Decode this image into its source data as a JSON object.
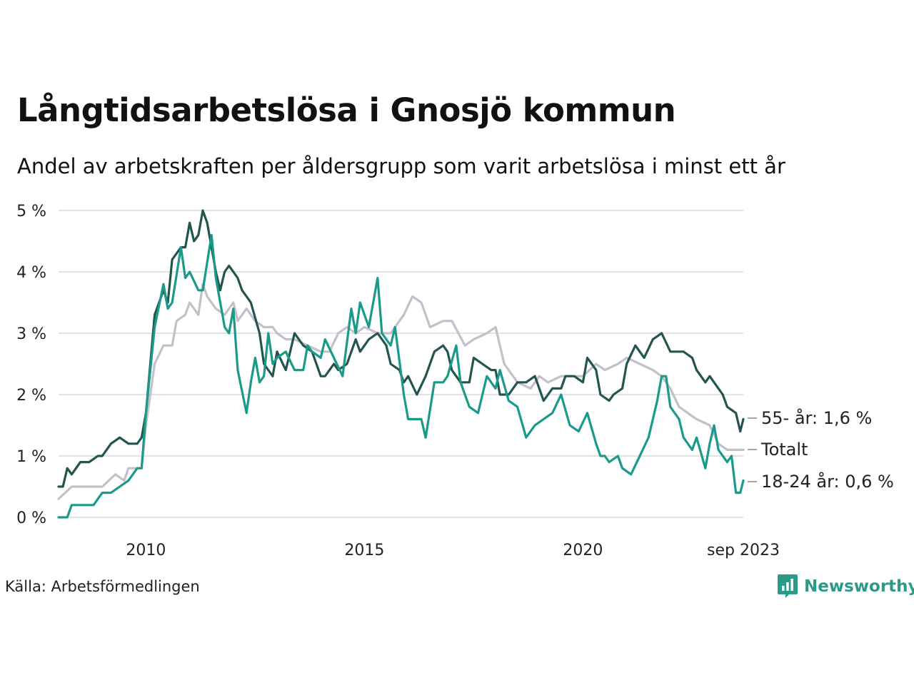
{
  "title": "Långtidsarbetslösa i Gnosjö kommun",
  "subtitle": "Andel av arbetskraften per åldersgrupp som varit arbetslösa i minst ett år",
  "source": "Källa: Arbetsförmedlingen",
  "brand": {
    "name": "Newsworthy"
  },
  "colors": {
    "oldest": "#23554e",
    "total": "#c2c0cb",
    "youngest": "#1a9a8a",
    "grid": "#e1e1e6"
  },
  "chart_data": {
    "type": "line",
    "title": "Långtidsarbetslösa i Gnosjö kommun",
    "ylabel": "Andel av arbetskraften",
    "ylim": [
      0,
      5
    ],
    "xlim": [
      2008.0,
      2023.67
    ],
    "y_ticks": [
      0,
      1,
      2,
      3,
      4,
      5
    ],
    "y_tick_labels": [
      "0 %",
      "1 %",
      "2 %",
      "3 %",
      "4 %",
      "5 %"
    ],
    "x_ticks": [
      2010,
      2015,
      2020,
      2023.67
    ],
    "x_tick_labels": [
      "2010",
      "2015",
      "2020",
      "sep 2023"
    ],
    "series": [
      {
        "name": "Totalt",
        "label": "Totalt",
        "color": "#c2c0cb",
        "points": [
          [
            2008.0,
            0.3
          ],
          [
            2008.3,
            0.5
          ],
          [
            2008.8,
            0.5
          ],
          [
            2009.0,
            0.5
          ],
          [
            2009.3,
            0.7
          ],
          [
            2009.5,
            0.6
          ],
          [
            2009.6,
            0.8
          ],
          [
            2009.9,
            0.8
          ],
          [
            2010.0,
            1.5
          ],
          [
            2010.2,
            2.5
          ],
          [
            2010.4,
            2.8
          ],
          [
            2010.6,
            2.8
          ],
          [
            2010.7,
            3.2
          ],
          [
            2010.9,
            3.3
          ],
          [
            2011.0,
            3.5
          ],
          [
            2011.2,
            3.3
          ],
          [
            2011.3,
            3.8
          ],
          [
            2011.4,
            3.6
          ],
          [
            2011.6,
            3.4
          ],
          [
            2011.8,
            3.3
          ],
          [
            2012.0,
            3.5
          ],
          [
            2012.1,
            3.2
          ],
          [
            2012.3,
            3.4
          ],
          [
            2012.5,
            3.2
          ],
          [
            2012.7,
            3.1
          ],
          [
            2012.9,
            3.1
          ],
          [
            2013.0,
            3.0
          ],
          [
            2013.2,
            2.9
          ],
          [
            2013.4,
            2.9
          ],
          [
            2013.7,
            2.8
          ],
          [
            2014.0,
            2.7
          ],
          [
            2014.2,
            2.7
          ],
          [
            2014.4,
            3.0
          ],
          [
            2014.6,
            3.1
          ],
          [
            2014.8,
            3.0
          ],
          [
            2015.0,
            3.1
          ],
          [
            2015.3,
            3.0
          ],
          [
            2015.6,
            3.0
          ],
          [
            2015.9,
            3.3
          ],
          [
            2016.1,
            3.6
          ],
          [
            2016.3,
            3.5
          ],
          [
            2016.5,
            3.1
          ],
          [
            2016.8,
            3.2
          ],
          [
            2017.0,
            3.2
          ],
          [
            2017.3,
            2.8
          ],
          [
            2017.5,
            2.9
          ],
          [
            2017.8,
            3.0
          ],
          [
            2018.0,
            3.1
          ],
          [
            2018.2,
            2.5
          ],
          [
            2018.5,
            2.2
          ],
          [
            2018.8,
            2.1
          ],
          [
            2019.0,
            2.3
          ],
          [
            2019.2,
            2.2
          ],
          [
            2019.5,
            2.3
          ],
          [
            2019.8,
            2.3
          ],
          [
            2020.0,
            2.3
          ],
          [
            2020.3,
            2.5
          ],
          [
            2020.5,
            2.4
          ],
          [
            2020.8,
            2.5
          ],
          [
            2021.0,
            2.6
          ],
          [
            2021.3,
            2.5
          ],
          [
            2021.6,
            2.4
          ],
          [
            2021.8,
            2.3
          ],
          [
            2022.0,
            2.1
          ],
          [
            2022.2,
            1.8
          ],
          [
            2022.4,
            1.7
          ],
          [
            2022.6,
            1.6
          ],
          [
            2022.9,
            1.5
          ],
          [
            2023.1,
            1.2
          ],
          [
            2023.3,
            1.1
          ],
          [
            2023.67,
            1.1
          ]
        ]
      },
      {
        "name": "55- år",
        "label": "55- år: 1,6 %",
        "color": "#23554e",
        "points": [
          [
            2008.0,
            0.5
          ],
          [
            2008.1,
            0.5
          ],
          [
            2008.2,
            0.8
          ],
          [
            2008.3,
            0.7
          ],
          [
            2008.5,
            0.9
          ],
          [
            2008.7,
            0.9
          ],
          [
            2008.9,
            1.0
          ],
          [
            2009.0,
            1.0
          ],
          [
            2009.2,
            1.2
          ],
          [
            2009.4,
            1.3
          ],
          [
            2009.6,
            1.2
          ],
          [
            2009.8,
            1.2
          ],
          [
            2009.9,
            1.3
          ],
          [
            2010.0,
            1.7
          ],
          [
            2010.2,
            3.3
          ],
          [
            2010.4,
            3.7
          ],
          [
            2010.5,
            3.5
          ],
          [
            2010.6,
            4.2
          ],
          [
            2010.8,
            4.4
          ],
          [
            2010.9,
            4.4
          ],
          [
            2011.0,
            4.8
          ],
          [
            2011.1,
            4.5
          ],
          [
            2011.2,
            4.6
          ],
          [
            2011.3,
            5.0
          ],
          [
            2011.4,
            4.8
          ],
          [
            2011.6,
            4.0
          ],
          [
            2011.7,
            3.7
          ],
          [
            2011.8,
            4.0
          ],
          [
            2011.9,
            4.1
          ],
          [
            2012.1,
            3.9
          ],
          [
            2012.2,
            3.7
          ],
          [
            2012.4,
            3.5
          ],
          [
            2012.6,
            3.0
          ],
          [
            2012.7,
            2.5
          ],
          [
            2012.9,
            2.3
          ],
          [
            2013.0,
            2.7
          ],
          [
            2013.2,
            2.4
          ],
          [
            2013.3,
            2.7
          ],
          [
            2013.4,
            3.0
          ],
          [
            2013.6,
            2.8
          ],
          [
            2013.8,
            2.7
          ],
          [
            2014.0,
            2.3
          ],
          [
            2014.1,
            2.3
          ],
          [
            2014.3,
            2.5
          ],
          [
            2014.4,
            2.4
          ],
          [
            2014.6,
            2.5
          ],
          [
            2014.8,
            2.9
          ],
          [
            2014.9,
            2.7
          ],
          [
            2015.0,
            2.8
          ],
          [
            2015.1,
            2.9
          ],
          [
            2015.3,
            3.0
          ],
          [
            2015.5,
            2.8
          ],
          [
            2015.6,
            2.5
          ],
          [
            2015.8,
            2.4
          ],
          [
            2015.9,
            2.2
          ],
          [
            2016.0,
            2.3
          ],
          [
            2016.2,
            2.0
          ],
          [
            2016.4,
            2.3
          ],
          [
            2016.6,
            2.7
          ],
          [
            2016.8,
            2.8
          ],
          [
            2016.9,
            2.7
          ],
          [
            2017.0,
            2.4
          ],
          [
            2017.2,
            2.2
          ],
          [
            2017.4,
            2.2
          ],
          [
            2017.5,
            2.6
          ],
          [
            2017.7,
            2.5
          ],
          [
            2017.9,
            2.4
          ],
          [
            2018.0,
            2.4
          ],
          [
            2018.1,
            2.0
          ],
          [
            2018.3,
            2.0
          ],
          [
            2018.5,
            2.2
          ],
          [
            2018.7,
            2.2
          ],
          [
            2018.9,
            2.3
          ],
          [
            2019.0,
            2.1
          ],
          [
            2019.1,
            1.9
          ],
          [
            2019.3,
            2.1
          ],
          [
            2019.5,
            2.1
          ],
          [
            2019.6,
            2.3
          ],
          [
            2019.8,
            2.3
          ],
          [
            2020.0,
            2.2
          ],
          [
            2020.1,
            2.6
          ],
          [
            2020.3,
            2.4
          ],
          [
            2020.4,
            2.0
          ],
          [
            2020.6,
            1.9
          ],
          [
            2020.7,
            2.0
          ],
          [
            2020.9,
            2.1
          ],
          [
            2021.0,
            2.5
          ],
          [
            2021.2,
            2.8
          ],
          [
            2021.4,
            2.6
          ],
          [
            2021.6,
            2.9
          ],
          [
            2021.8,
            3.0
          ],
          [
            2022.0,
            2.7
          ],
          [
            2022.1,
            2.7
          ],
          [
            2022.3,
            2.7
          ],
          [
            2022.5,
            2.6
          ],
          [
            2022.6,
            2.4
          ],
          [
            2022.8,
            2.2
          ],
          [
            2022.9,
            2.3
          ],
          [
            2023.1,
            2.1
          ],
          [
            2023.2,
            2.0
          ],
          [
            2023.3,
            1.8
          ],
          [
            2023.5,
            1.7
          ],
          [
            2023.6,
            1.4
          ],
          [
            2023.67,
            1.6
          ]
        ]
      },
      {
        "name": "18-24 år",
        "label": "18-24 år: 0,6 %",
        "color": "#1a9a8a",
        "points": [
          [
            2008.0,
            0.0
          ],
          [
            2008.2,
            0.0
          ],
          [
            2008.3,
            0.2
          ],
          [
            2008.6,
            0.2
          ],
          [
            2008.8,
            0.2
          ],
          [
            2009.0,
            0.4
          ],
          [
            2009.2,
            0.4
          ],
          [
            2009.4,
            0.5
          ],
          [
            2009.6,
            0.6
          ],
          [
            2009.8,
            0.8
          ],
          [
            2009.9,
            0.8
          ],
          [
            2010.0,
            1.7
          ],
          [
            2010.2,
            3.1
          ],
          [
            2010.4,
            3.8
          ],
          [
            2010.5,
            3.4
          ],
          [
            2010.6,
            3.5
          ],
          [
            2010.8,
            4.4
          ],
          [
            2010.9,
            3.9
          ],
          [
            2011.0,
            4.0
          ],
          [
            2011.2,
            3.7
          ],
          [
            2011.3,
            3.7
          ],
          [
            2011.5,
            4.6
          ],
          [
            2011.6,
            3.9
          ],
          [
            2011.8,
            3.1
          ],
          [
            2011.9,
            3.0
          ],
          [
            2012.0,
            3.4
          ],
          [
            2012.1,
            2.4
          ],
          [
            2012.3,
            1.7
          ],
          [
            2012.4,
            2.2
          ],
          [
            2012.5,
            2.6
          ],
          [
            2012.6,
            2.2
          ],
          [
            2012.7,
            2.3
          ],
          [
            2012.8,
            3.0
          ],
          [
            2012.9,
            2.5
          ],
          [
            2013.0,
            2.6
          ],
          [
            2013.2,
            2.7
          ],
          [
            2013.4,
            2.4
          ],
          [
            2013.6,
            2.4
          ],
          [
            2013.7,
            2.8
          ],
          [
            2013.8,
            2.7
          ],
          [
            2014.0,
            2.6
          ],
          [
            2014.1,
            2.9
          ],
          [
            2014.3,
            2.6
          ],
          [
            2014.5,
            2.3
          ],
          [
            2014.7,
            3.4
          ],
          [
            2014.8,
            3.0
          ],
          [
            2014.9,
            3.5
          ],
          [
            2015.1,
            3.1
          ],
          [
            2015.3,
            3.9
          ],
          [
            2015.4,
            3.0
          ],
          [
            2015.6,
            2.8
          ],
          [
            2015.7,
            3.1
          ],
          [
            2015.9,
            2.0
          ],
          [
            2016.0,
            1.6
          ],
          [
            2016.1,
            1.6
          ],
          [
            2016.3,
            1.6
          ],
          [
            2016.4,
            1.3
          ],
          [
            2016.6,
            2.2
          ],
          [
            2016.8,
            2.2
          ],
          [
            2016.9,
            2.3
          ],
          [
            2017.1,
            2.8
          ],
          [
            2017.2,
            2.2
          ],
          [
            2017.4,
            1.8
          ],
          [
            2017.6,
            1.7
          ],
          [
            2017.8,
            2.3
          ],
          [
            2018.0,
            2.1
          ],
          [
            2018.1,
            2.4
          ],
          [
            2018.3,
            1.9
          ],
          [
            2018.5,
            1.8
          ],
          [
            2018.7,
            1.3
          ],
          [
            2018.9,
            1.5
          ],
          [
            2019.1,
            1.6
          ],
          [
            2019.3,
            1.7
          ],
          [
            2019.5,
            2.0
          ],
          [
            2019.7,
            1.5
          ],
          [
            2019.9,
            1.4
          ],
          [
            2020.1,
            1.7
          ],
          [
            2020.3,
            1.2
          ],
          [
            2020.4,
            1.0
          ],
          [
            2020.5,
            1.0
          ],
          [
            2020.6,
            0.9
          ],
          [
            2020.8,
            1.0
          ],
          [
            2020.9,
            0.8
          ],
          [
            2021.1,
            0.7
          ],
          [
            2021.3,
            1.0
          ],
          [
            2021.5,
            1.3
          ],
          [
            2021.7,
            1.9
          ],
          [
            2021.8,
            2.3
          ],
          [
            2021.9,
            2.3
          ],
          [
            2022.0,
            1.8
          ],
          [
            2022.2,
            1.6
          ],
          [
            2022.3,
            1.3
          ],
          [
            2022.5,
            1.1
          ],
          [
            2022.6,
            1.3
          ],
          [
            2022.8,
            0.8
          ],
          [
            2022.9,
            1.2
          ],
          [
            2023.0,
            1.5
          ],
          [
            2023.1,
            1.1
          ],
          [
            2023.3,
            0.9
          ],
          [
            2023.4,
            1.0
          ],
          [
            2023.5,
            0.4
          ],
          [
            2023.6,
            0.4
          ],
          [
            2023.67,
            0.6
          ]
        ]
      }
    ]
  }
}
